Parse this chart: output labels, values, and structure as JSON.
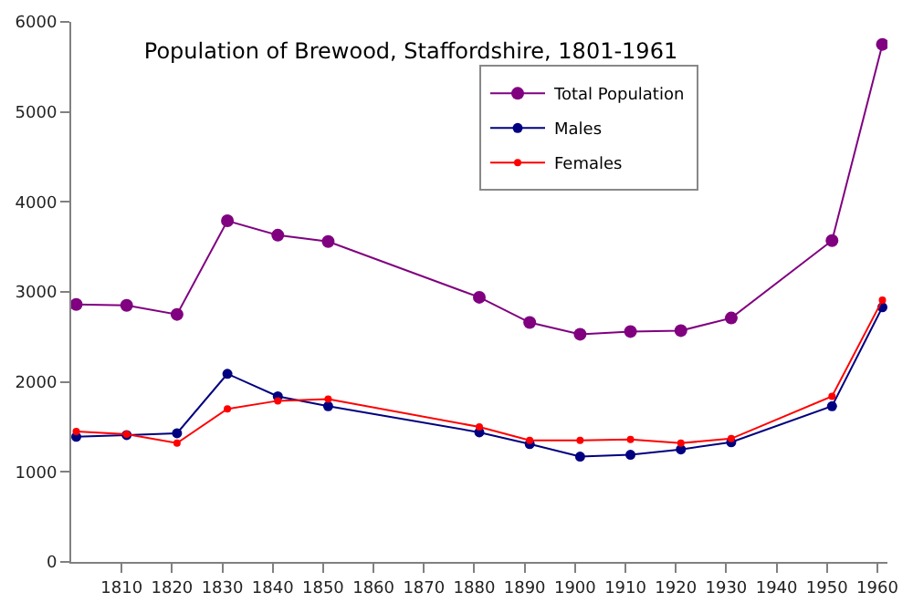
{
  "chart_data": {
    "type": "line",
    "title": "Population of Brewood, Staffordshire, 1801-1961",
    "x": [
      1801,
      1811,
      1821,
      1831,
      1841,
      1851,
      1881,
      1891,
      1901,
      1911,
      1921,
      1931,
      1951,
      1961
    ],
    "series": [
      {
        "name": "Total Population",
        "color": "#800080",
        "values": [
          2860,
          2850,
          2750,
          3790,
          3630,
          3560,
          2940,
          2660,
          2530,
          2560,
          2570,
          2710,
          3570,
          5750
        ]
      },
      {
        "name": "Males",
        "color": "#000080",
        "values": [
          1390,
          1410,
          1430,
          2090,
          1840,
          1730,
          1440,
          1310,
          1170,
          1190,
          1250,
          1330,
          1730,
          2830
        ]
      },
      {
        "name": "Females",
        "color": "#ff0000",
        "values": [
          1450,
          1420,
          1320,
          1700,
          1790,
          1810,
          1500,
          1350,
          1350,
          1360,
          1320,
          1370,
          1840,
          2910
        ]
      }
    ],
    "xlim": [
      1800,
      1962
    ],
    "xticks": [
      1810,
      1820,
      1830,
      1840,
      1850,
      1860,
      1870,
      1880,
      1890,
      1900,
      1910,
      1920,
      1930,
      1940,
      1950,
      1960
    ],
    "ylim": [
      0,
      6000
    ],
    "yticks": [
      0,
      1000,
      2000,
      3000,
      4000,
      5000,
      6000
    ],
    "legend": "top",
    "marker": "circle",
    "line_style": "solid"
  }
}
